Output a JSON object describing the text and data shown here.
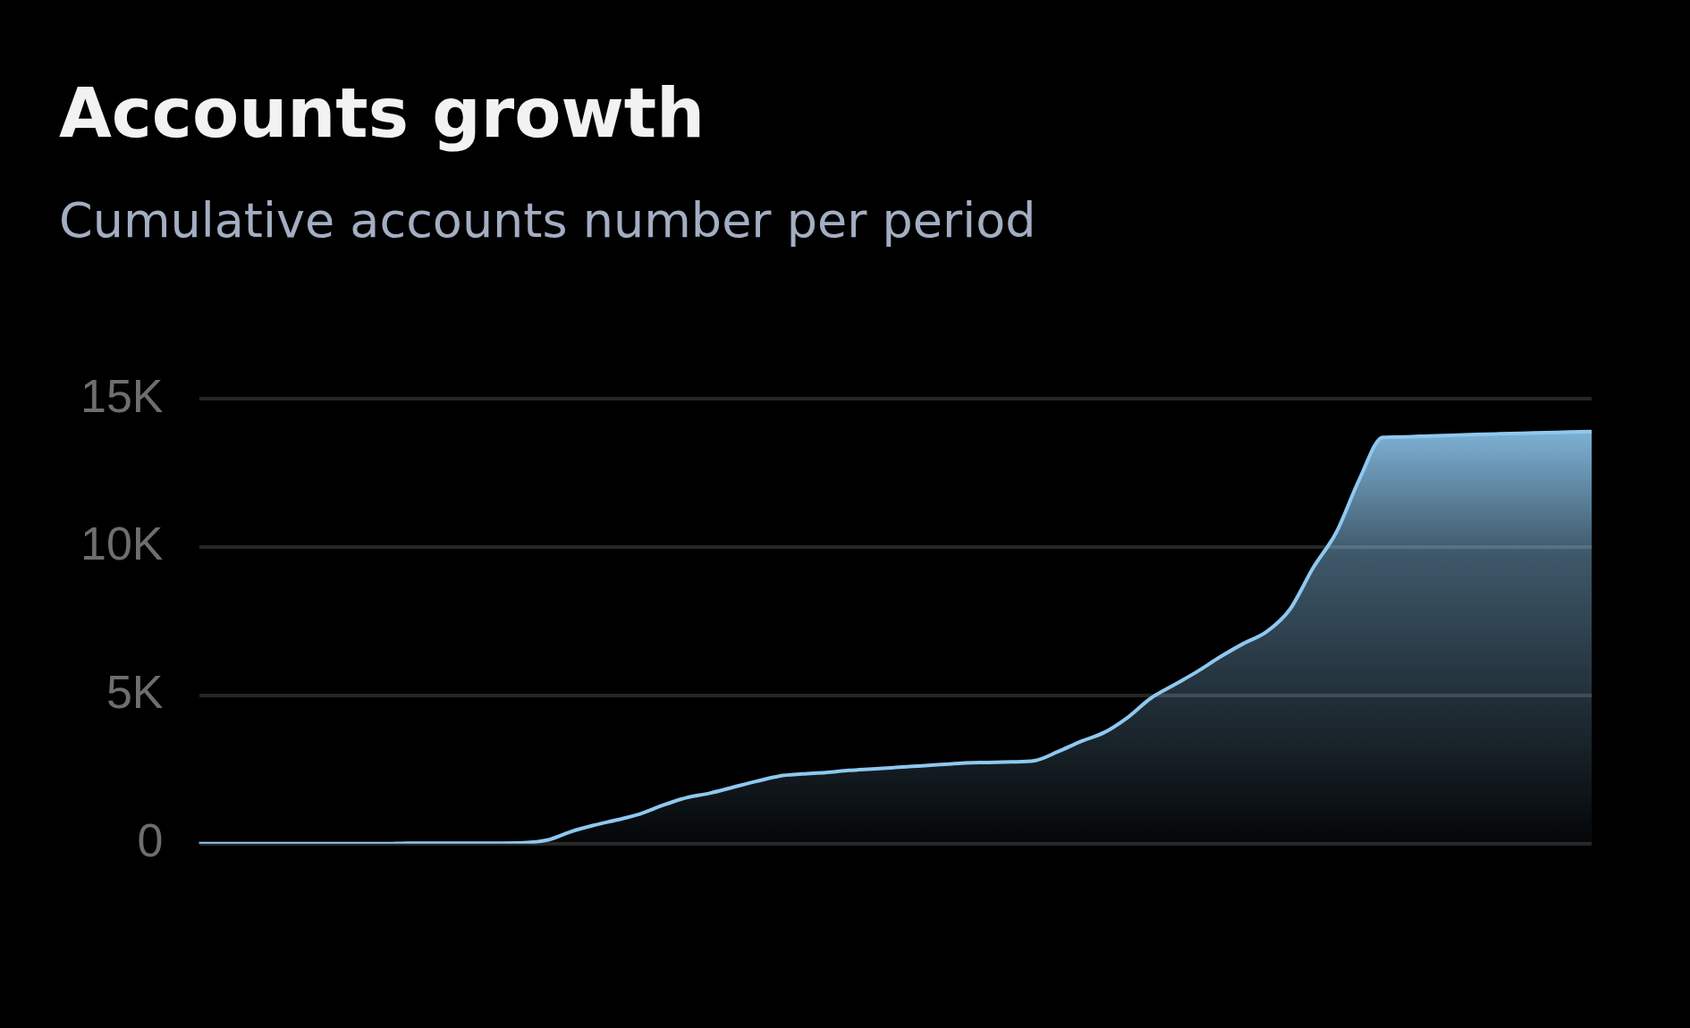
{
  "chart_data": {
    "type": "area",
    "title": "Accounts growth",
    "subtitle": "Cumulative accounts number per period",
    "categories": [
      null,
      null,
      null,
      null,
      null,
      null,
      null,
      null,
      null,
      null,
      null,
      null,
      null,
      null,
      null,
      null,
      null,
      null,
      null,
      null,
      null,
      null,
      null,
      null,
      null,
      null,
      null,
      null,
      null,
      null,
      null,
      null,
      null,
      null,
      null,
      null,
      null,
      null,
      null,
      null,
      null,
      null,
      null,
      null,
      null,
      null,
      null,
      null,
      null,
      null,
      null,
      null,
      null,
      null,
      null,
      null,
      null,
      null,
      null,
      null,
      null
    ],
    "series": [
      {
        "color": "#8ec8f0",
        "values": [
          0,
          0,
          0,
          0,
          0,
          0,
          0,
          0,
          0,
          20,
          20,
          20,
          20,
          20,
          30,
          120,
          400,
          620,
          800,
          1000,
          1300,
          1550,
          1700,
          1900,
          2100,
          2280,
          2350,
          2400,
          2470,
          2520,
          2570,
          2620,
          2670,
          2720,
          2740,
          2760,
          2800,
          3100,
          3450,
          3750,
          4250,
          4900,
          5350,
          5800,
          6300,
          6750,
          7150,
          7900,
          9300,
          10500,
          12300,
          13700,
          13720,
          13750,
          13770,
          13800,
          13820,
          13840,
          13860,
          13880,
          13900
        ]
      }
    ],
    "ylim": [
      0,
      15000
    ],
    "yticks": [
      {
        "value": 0,
        "label": "0"
      },
      {
        "value": 5000,
        "label": "5K"
      },
      {
        "value": 10000,
        "label": "10K"
      },
      {
        "value": 15000,
        "label": "15K"
      }
    ],
    "tick_labels": "y",
    "grid": "y",
    "legend": false
  }
}
